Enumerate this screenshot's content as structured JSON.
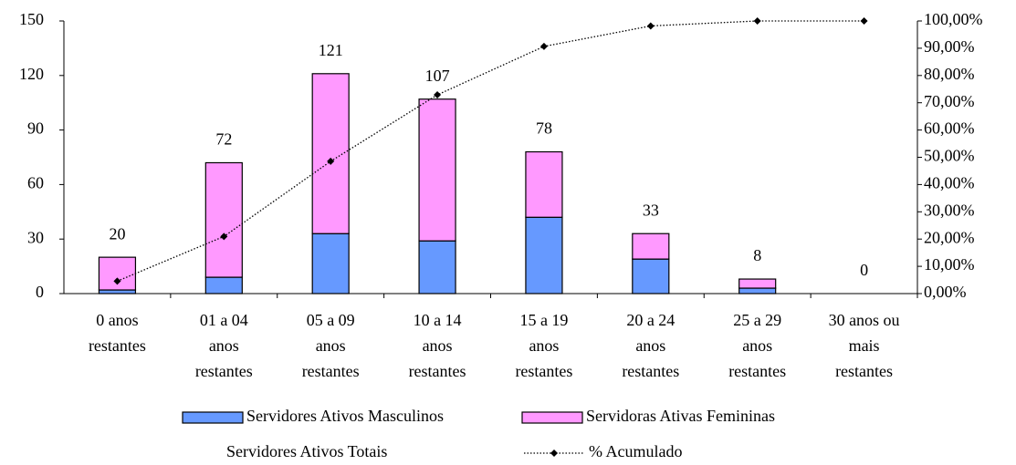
{
  "chart_data": {
    "type": "bar",
    "stacked": true,
    "categories": [
      [
        "0 anos",
        "restantes"
      ],
      [
        "01 a 04",
        "anos",
        "restantes"
      ],
      [
        "05 a 09",
        "anos",
        "restantes"
      ],
      [
        "10 a 14",
        "anos",
        "restantes"
      ],
      [
        "15 a 19",
        "anos",
        "restantes"
      ],
      [
        "20 a 24",
        "anos",
        "restantes"
      ],
      [
        "25 a 29",
        "anos",
        "restantes"
      ],
      [
        "30 anos ou",
        "mais",
        "restantes"
      ]
    ],
    "series": [
      {
        "name": "Servidores Ativos Masculinos",
        "color": "#6699ff",
        "values": [
          2,
          9,
          33,
          29,
          42,
          19,
          3,
          0
        ]
      },
      {
        "name": "Servidoras Ativas Femininas",
        "color": "#ff99ff",
        "values": [
          18,
          63,
          88,
          78,
          36,
          14,
          5,
          0
        ]
      },
      {
        "name": "Servidores Ativos Totais",
        "role": "labels",
        "values": [
          20,
          72,
          121,
          107,
          78,
          33,
          8,
          0
        ]
      },
      {
        "name": "% Acumulado",
        "type": "line",
        "axis": "y2",
        "color": "#000000",
        "values": [
          4.56,
          20.96,
          48.52,
          72.89,
          90.66,
          98.18,
          100,
          100
        ]
      }
    ],
    "ylim": [
      0,
      150
    ],
    "yticks": [
      0,
      30,
      60,
      90,
      120,
      150
    ],
    "y2lim": [
      0,
      100
    ],
    "y2ticks": [
      {
        "value": 0,
        "label": "0,00%"
      },
      {
        "value": 10,
        "label": "10,00%"
      },
      {
        "value": 20,
        "label": "20,00%"
      },
      {
        "value": 30,
        "label": "30,00%"
      },
      {
        "value": 40,
        "label": "40,00%"
      },
      {
        "value": 50,
        "label": "50,00%"
      },
      {
        "value": 60,
        "label": "60,00%"
      },
      {
        "value": 70,
        "label": "70,00%"
      },
      {
        "value": 80,
        "label": "80,00%"
      },
      {
        "value": 90,
        "label": "90,00%"
      },
      {
        "value": 100,
        "label": "100,00%"
      }
    ],
    "grid": false,
    "legend": "bottom"
  }
}
